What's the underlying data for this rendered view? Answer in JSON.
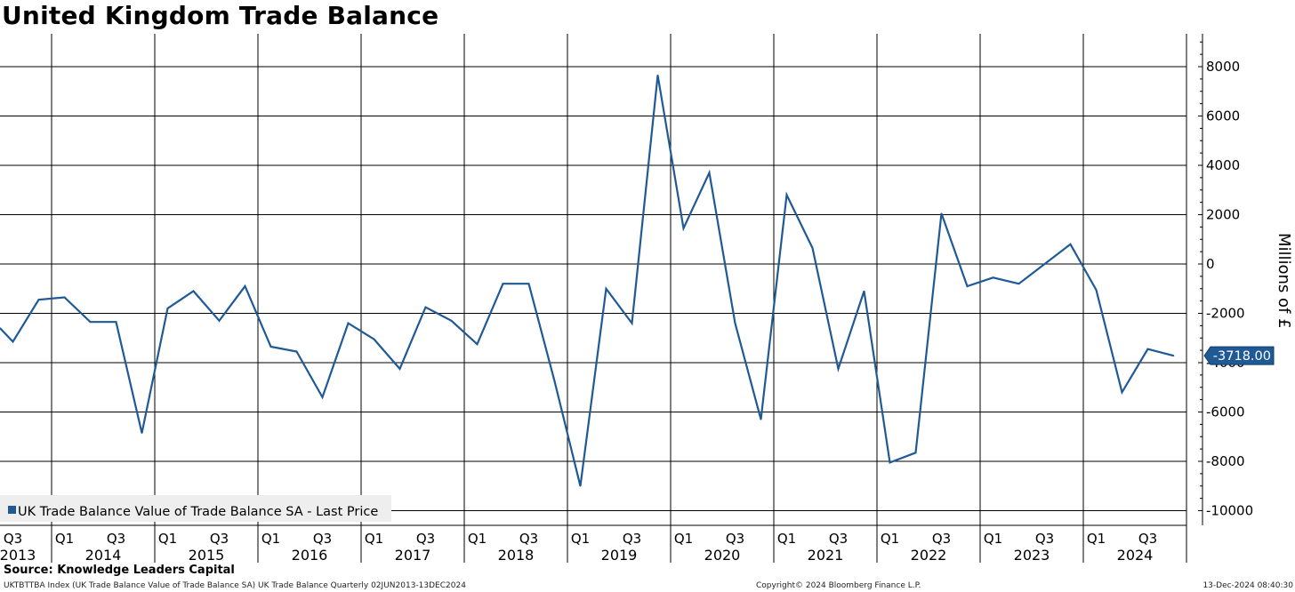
{
  "colors": {
    "line": "#1f5a96",
    "grid": "#000000",
    "background": "#ffffff",
    "legend_bg": "#eeeeee",
    "last_price_bg": "#1f5a96",
    "last_price_text": "#ffffff"
  },
  "chart_data": {
    "type": "line",
    "title": "United Kingdom Trade Balance",
    "ylabel": "Millions of £",
    "xlabel": "",
    "ylim": [
      -11000,
      9200
    ],
    "yticks": [
      8000,
      6000,
      4000,
      2000,
      0,
      -2000,
      -4000,
      -6000,
      -8000,
      -10000
    ],
    "ytick_labels": [
      "8000",
      "6000",
      "4000",
      "2000",
      "0",
      "-2000",
      "-4000",
      "-6000",
      "-8000",
      "-10000"
    ],
    "x_start_year": 2013,
    "quarter_labels": [
      {
        "q": 2013.625,
        "label": "Q3"
      },
      {
        "q": 2014.125,
        "label": "Q1"
      },
      {
        "q": 2014.625,
        "label": "Q3"
      },
      {
        "q": 2015.125,
        "label": "Q1"
      },
      {
        "q": 2015.625,
        "label": "Q3"
      },
      {
        "q": 2016.125,
        "label": "Q1"
      },
      {
        "q": 2016.625,
        "label": "Q3"
      },
      {
        "q": 2017.125,
        "label": "Q1"
      },
      {
        "q": 2017.625,
        "label": "Q3"
      },
      {
        "q": 2018.125,
        "label": "Q1"
      },
      {
        "q": 2018.625,
        "label": "Q3"
      },
      {
        "q": 2019.125,
        "label": "Q1"
      },
      {
        "q": 2019.625,
        "label": "Q3"
      },
      {
        "q": 2020.125,
        "label": "Q1"
      },
      {
        "q": 2020.625,
        "label": "Q3"
      },
      {
        "q": 2021.125,
        "label": "Q1"
      },
      {
        "q": 2021.625,
        "label": "Q3"
      },
      {
        "q": 2022.125,
        "label": "Q1"
      },
      {
        "q": 2022.625,
        "label": "Q3"
      },
      {
        "q": 2023.125,
        "label": "Q1"
      },
      {
        "q": 2023.625,
        "label": "Q3"
      },
      {
        "q": 2024.125,
        "label": "Q1"
      },
      {
        "q": 2024.625,
        "label": "Q3"
      }
    ],
    "year_labels": [
      {
        "pos": 2013.625,
        "label": "2013"
      },
      {
        "pos": 2014.5,
        "label": "2014"
      },
      {
        "pos": 2015.5,
        "label": "2015"
      },
      {
        "pos": 2016.5,
        "label": "2016"
      },
      {
        "pos": 2017.5,
        "label": "2017"
      },
      {
        "pos": 2018.5,
        "label": "2018"
      },
      {
        "pos": 2019.5,
        "label": "2019"
      },
      {
        "pos": 2020.5,
        "label": "2020"
      },
      {
        "pos": 2021.5,
        "label": "2021"
      },
      {
        "pos": 2022.5,
        "label": "2022"
      },
      {
        "pos": 2023.5,
        "label": "2023"
      },
      {
        "pos": 2024.5,
        "label": "2024"
      }
    ],
    "year_boundaries": [
      2014,
      2015,
      2016,
      2017,
      2018,
      2019,
      2020,
      2021,
      2022,
      2023,
      2024,
      2025
    ],
    "series": [
      {
        "name": "UK Trade Balance Value of Trade Balance SA - Last Price",
        "x": [
          2013.375,
          2013.625,
          2013.875,
          2014.125,
          2014.375,
          2014.625,
          2014.875,
          2015.125,
          2015.375,
          2015.625,
          2015.875,
          2016.125,
          2016.375,
          2016.625,
          2016.875,
          2017.125,
          2017.375,
          2017.625,
          2017.875,
          2018.125,
          2018.375,
          2018.625,
          2018.875,
          2019.125,
          2019.375,
          2019.625,
          2019.875,
          2020.125,
          2020.375,
          2020.625,
          2020.875,
          2021.125,
          2021.375,
          2021.625,
          2021.875,
          2022.125,
          2022.375,
          2022.625,
          2022.875,
          2023.125,
          2023.375,
          2023.625,
          2023.875,
          2024.125,
          2024.375,
          2024.625,
          2024.875
        ],
        "values": [
          -2600,
          -3150,
          -1450,
          -1350,
          -2350,
          -2350,
          -6850,
          -1800,
          -1100,
          -2300,
          -900,
          -3350,
          -3550,
          -5400,
          -2400,
          -3050,
          -4250,
          -1750,
          -2300,
          -3250,
          -800,
          -800,
          -4750,
          -9000,
          -1000,
          -2400,
          7650,
          1450,
          3700,
          -2400,
          -6300,
          2800,
          650,
          -4250,
          -1100,
          -8050,
          -7650,
          2050,
          -900,
          -550,
          -800,
          0,
          800,
          -1050,
          -5200,
          -3450,
          -3718
        ]
      }
    ],
    "last_price_label": "-3718.00",
    "legend_position": "bottom-left"
  },
  "footer": {
    "source": "Source: Knowledge Leaders Capital",
    "description": "UKTBTTBA Index (UK Trade Balance Value of Trade Balance SA) UK Trade Balance  Quarterly 02JUN2013-13DEC2024",
    "copyright": "Copyright© 2024 Bloomberg Finance L.P.",
    "date": "13-Dec-2024 08:40:30"
  }
}
